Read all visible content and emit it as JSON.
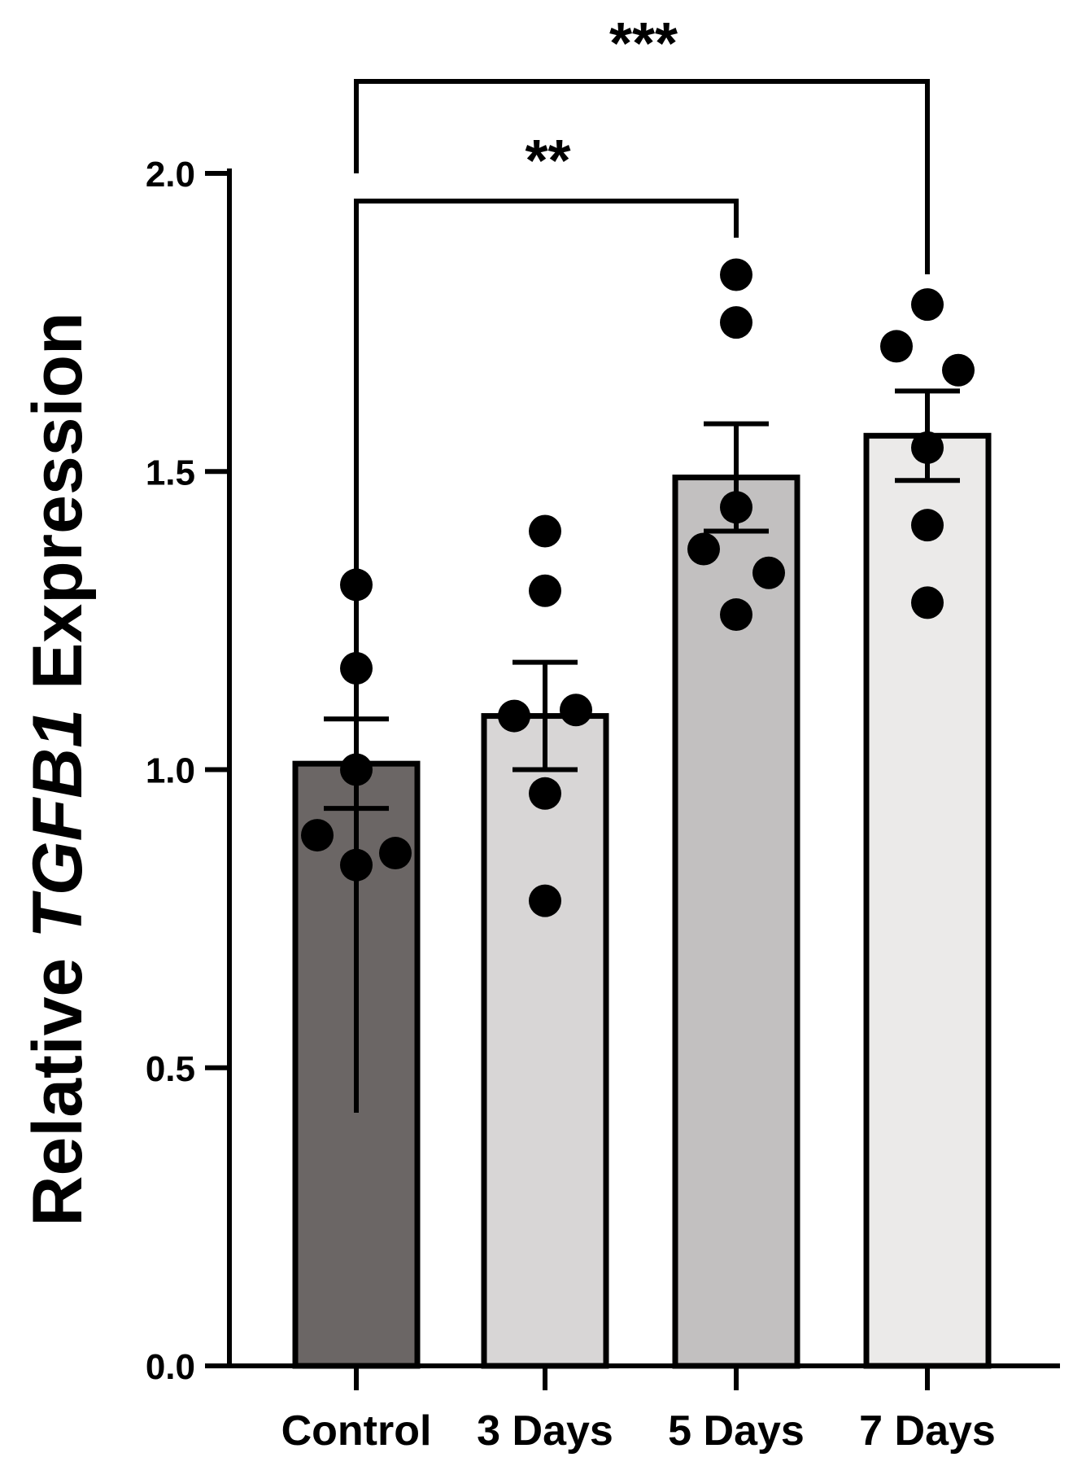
{
  "chart_data": {
    "type": "bar",
    "title": "",
    "xlabel": "",
    "ylabel": {
      "prefix": "Relative ",
      "gene": "TGFB1",
      "suffix": " Expression"
    },
    "ylim": [
      0,
      2.0
    ],
    "yticks": [
      0.0,
      0.5,
      1.0,
      1.5,
      2.0
    ],
    "ytick_labels": [
      "0.0",
      "0.5",
      "1.0",
      "1.5",
      "2.0"
    ],
    "categories": [
      "Control",
      "3 Days",
      "5 Days",
      "7 Days"
    ],
    "values": [
      1.01,
      1.09,
      1.49,
      1.56
    ],
    "sem": [
      0.075,
      0.09,
      0.09,
      0.075
    ],
    "bar_colors": [
      "#6b6665",
      "#d8d6d6",
      "#c2c0c0",
      "#ebeae9"
    ],
    "points": [
      [
        1.31,
        1.17,
        1.0,
        0.89,
        0.84,
        0.86
      ],
      [
        1.4,
        1.3,
        1.1,
        1.09,
        0.96,
        0.78
      ],
      [
        1.83,
        1.75,
        1.44,
        1.37,
        1.33,
        1.26
      ],
      [
        1.78,
        1.71,
        1.67,
        1.54,
        1.41,
        1.28
      ]
    ],
    "significance": [
      {
        "from": "Control",
        "to": "5 Days",
        "label": "**"
      },
      {
        "from": "Control",
        "to": "7 Days",
        "label": "***"
      }
    ],
    "grid": false,
    "legend": "none"
  }
}
